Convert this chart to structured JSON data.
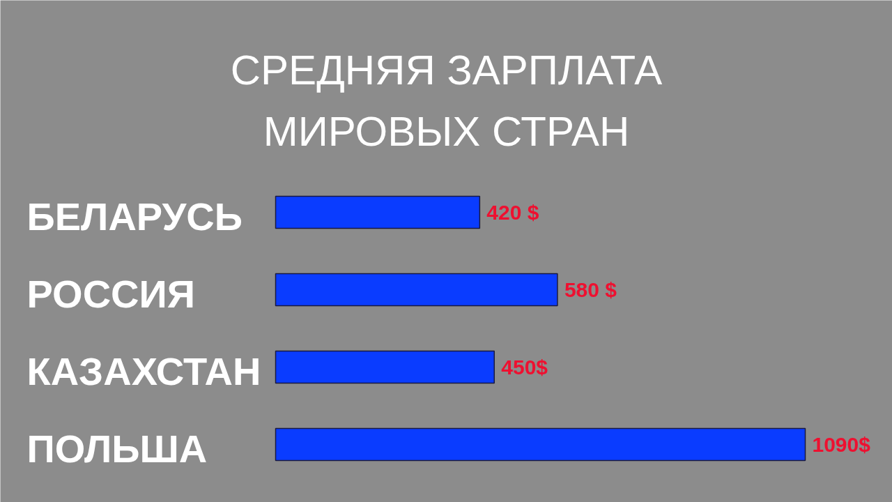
{
  "chart_data": {
    "type": "bar",
    "orientation": "horizontal",
    "title": "СРЕДНЯЯ ЗАРПЛАТА\nМИРОВЫХ СТРАН",
    "categories": [
      "БЕЛАРУСЬ",
      "РОССИЯ",
      "КАЗАХСТАН",
      "ПОЛЬША"
    ],
    "values": [
      420,
      580,
      450,
      1090
    ],
    "value_labels": [
      "420 $",
      "580 $",
      "450$",
      "1090$"
    ],
    "color": "#0a3cff"
  }
}
